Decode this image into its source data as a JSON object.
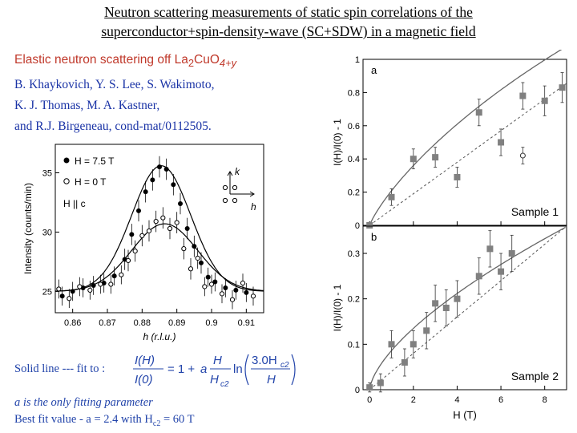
{
  "slide": {
    "title_line1": "Neutron scattering measurements of static spin correlations of the",
    "title_line2": "superconductor+spin-density-wave (SC+SDW) in a magnetic field",
    "subtitle_prefix": "Elastic neutron scattering off La",
    "subtitle_sub1": "2",
    "subtitle_mid": "CuO",
    "subtitle_sub2": "4+y",
    "authors": [
      "B. Khaykovich, Y. S. Lee, S. Wakimoto,",
      "K. J. Thomas, M. A. Kastner,",
      "and R.J. Birgeneau, cond-mat/0112505."
    ],
    "fit_label": "Solid line --- fit to :",
    "note1": "a is the only fitting parameter",
    "note2_prefix": "Best fit value - a = 2.4 with H",
    "note2_sub": "c2",
    "note2_suffix": " = 60 T",
    "colors": {
      "title": "#000000",
      "subtitle": "#c0392b",
      "authors": "#1a33a6",
      "notes": "#2244aa",
      "marker_gray": "#808080"
    }
  },
  "formula": {
    "lhs_num": "I(H)",
    "lhs_den": "I(0)",
    "eq": "= 1 +",
    "a": "a",
    "frac_num": "H",
    "frac_den": "H",
    "frac_den_sub": "c2",
    "ln": "ln",
    "arg_num": "3.0H",
    "arg_num_sub": "c2",
    "arg_den": "H"
  },
  "chart_data": [
    {
      "type": "scatter",
      "name": "left_panel",
      "xlabel": "h (r.l.u.)",
      "ylabel": "Intensity (counts/min)",
      "xlim": [
        0.855,
        0.915
      ],
      "ylim": [
        23.2,
        37.4
      ],
      "xticks": [
        0.86,
        0.87,
        0.88,
        0.89,
        0.9,
        0.91
      ],
      "xtick_labels": [
        "0.86",
        "0.87",
        "0.88",
        "0.89",
        "0.9",
        "0.91"
      ],
      "yticks": [
        25,
        30,
        35
      ],
      "ytick_labels": [
        "25",
        "30",
        "35"
      ],
      "legend": [
        "H = 7.5 T",
        "H = 0 T"
      ],
      "annotation": "H || c",
      "inset_labels": {
        "k": "k",
        "h": "h"
      },
      "series": [
        {
          "name": "H = 7.5 T",
          "marker": "filled-circle",
          "x": [
            0.857,
            0.86,
            0.863,
            0.866,
            0.869,
            0.872,
            0.875,
            0.877,
            0.879,
            0.881,
            0.883,
            0.885,
            0.887,
            0.889,
            0.891,
            0.893,
            0.895,
            0.897,
            0.899,
            0.901,
            0.904,
            0.907,
            0.91
          ],
          "y": [
            24.6,
            25.0,
            25.3,
            25.5,
            25.7,
            26.3,
            27.7,
            29.8,
            31.8,
            33.4,
            34.4,
            35.5,
            35.3,
            34.0,
            32.4,
            30.3,
            28.8,
            27.4,
            26.2,
            25.8,
            25.3,
            25.1,
            24.9
          ],
          "err": [
            0.8,
            0.8,
            0.8,
            0.8,
            0.8,
            0.8,
            0.9,
            0.9,
            0.9,
            0.9,
            0.9,
            0.9,
            0.9,
            0.9,
            0.9,
            0.9,
            0.9,
            0.9,
            0.8,
            0.8,
            0.8,
            0.8,
            0.8
          ]
        },
        {
          "name": "H = 0 T",
          "marker": "open-circle",
          "x": [
            0.856,
            0.859,
            0.862,
            0.865,
            0.868,
            0.871,
            0.874,
            0.876,
            0.878,
            0.88,
            0.882,
            0.884,
            0.886,
            0.888,
            0.89,
            0.892,
            0.894,
            0.896,
            0.898,
            0.9,
            0.903,
            0.906,
            0.909,
            0.912
          ],
          "y": [
            25.2,
            24.4,
            25.4,
            25.1,
            25.6,
            25.6,
            26.4,
            27.6,
            28.4,
            29.7,
            30.1,
            30.9,
            31.2,
            30.3,
            30.8,
            28.6,
            26.9,
            27.8,
            25.4,
            25.6,
            24.8,
            24.3,
            25.7,
            24.6
          ],
          "err": [
            0.8,
            0.8,
            0.8,
            0.8,
            0.8,
            0.8,
            0.8,
            0.9,
            0.9,
            0.9,
            0.9,
            0.9,
            0.9,
            0.9,
            0.9,
            0.9,
            0.9,
            0.9,
            0.8,
            0.8,
            0.8,
            0.8,
            0.8,
            0.8
          ]
        }
      ]
    },
    {
      "type": "scatter",
      "name": "sample_1",
      "panel_label": "a",
      "sample_label": "Sample 1",
      "ylabel": "I(H)/I(0) - 1",
      "xlim": [
        -0.3,
        9.0
      ],
      "ylim": [
        0,
        1.0
      ],
      "yticks": [
        0,
        0.2,
        0.4,
        0.6,
        0.8,
        1
      ],
      "ytick_labels": [
        "0",
        "0.2",
        "0.4",
        "0.6",
        "0.8",
        "1"
      ],
      "series": [
        {
          "name": "data",
          "marker": "gray-square",
          "x": [
            0,
            1.0,
            2.0,
            3.0,
            4.0,
            5.0,
            6.0,
            7.0,
            8.0,
            8.8
          ],
          "y": [
            0,
            0.17,
            0.4,
            0.41,
            0.29,
            0.68,
            0.5,
            0.78,
            0.75,
            0.83
          ],
          "err": [
            0.01,
            0.05,
            0.06,
            0.06,
            0.06,
            0.08,
            0.08,
            0.08,
            0.09,
            0.09
          ]
        },
        {
          "name": "open",
          "marker": "open-circle",
          "x": [
            7.0
          ],
          "y": [
            0.42
          ],
          "err": [
            0.05
          ]
        }
      ]
    },
    {
      "type": "scatter",
      "name": "sample_2",
      "panel_label": "b",
      "sample_label": "Sample 2",
      "ylabel": "I(H)/I(0) - 1",
      "xlabel": "H (T)",
      "xlim": [
        -0.3,
        9.0
      ],
      "ylim": [
        0,
        0.36
      ],
      "xticks": [
        0,
        2,
        4,
        6,
        8
      ],
      "xtick_labels": [
        "0",
        "2",
        "4",
        "6",
        "8"
      ],
      "yticks": [
        0,
        0.1,
        0.2,
        0.3
      ],
      "ytick_labels": [
        "0",
        "0.1",
        "0.2",
        "0.3"
      ],
      "series": [
        {
          "name": "data",
          "marker": "gray-square",
          "x": [
            0,
            0.5,
            1.0,
            1.6,
            2.0,
            2.6,
            3.0,
            3.5,
            4.0,
            5.0,
            5.5,
            6.0,
            6.5
          ],
          "y": [
            0.005,
            0.015,
            0.1,
            0.06,
            0.1,
            0.13,
            0.19,
            0.18,
            0.2,
            0.25,
            0.31,
            0.26,
            0.3
          ],
          "err": [
            0.01,
            0.02,
            0.03,
            0.03,
            0.03,
            0.04,
            0.04,
            0.04,
            0.04,
            0.04,
            0.04,
            0.04,
            0.04
          ]
        }
      ]
    }
  ]
}
